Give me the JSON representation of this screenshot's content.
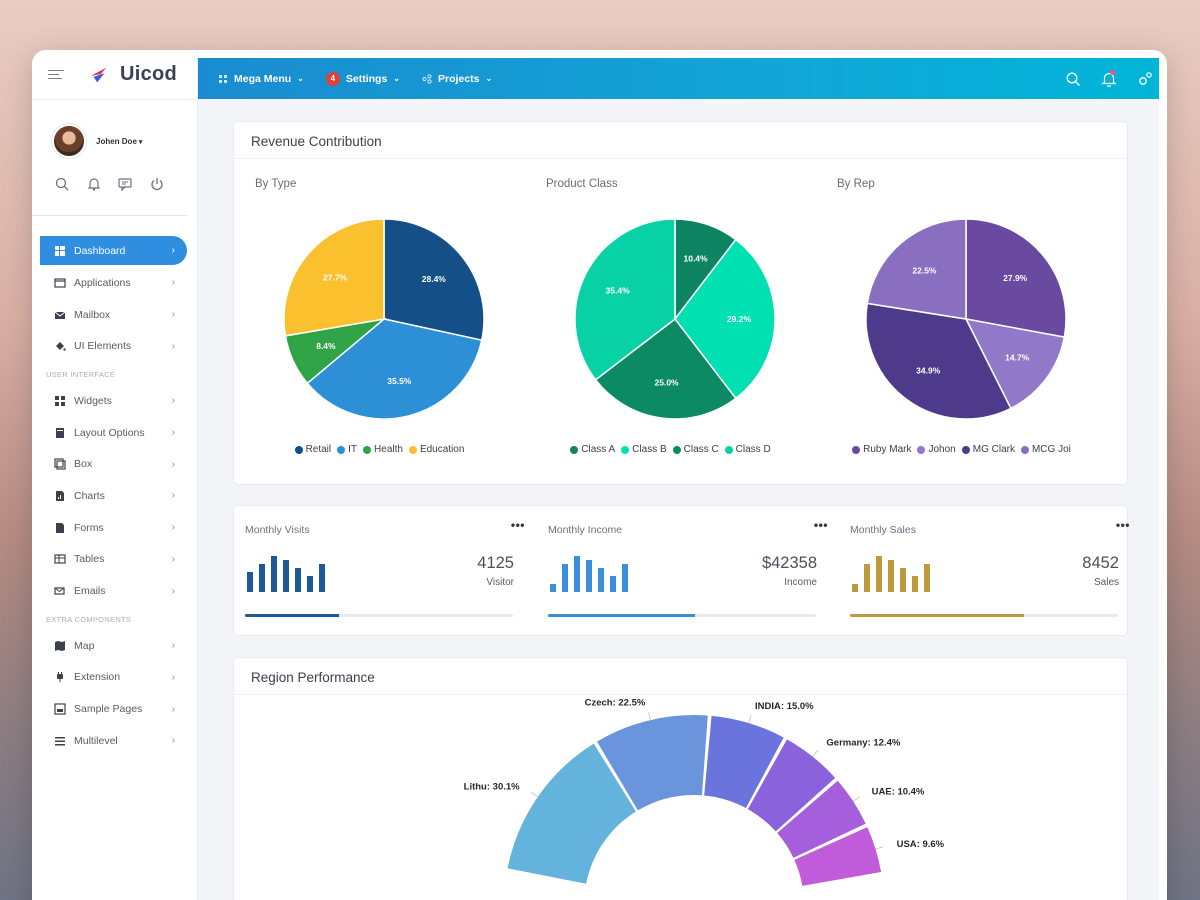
{
  "brand": {
    "name": "Uicod"
  },
  "profile": {
    "name": "Johen Doe"
  },
  "sidebar": {
    "items": [
      {
        "label": "Dashboard",
        "icon": "dashboard-icon"
      },
      {
        "label": "Applications",
        "icon": "window-icon"
      },
      {
        "label": "Mailbox",
        "icon": "mail-icon"
      },
      {
        "label": "UI Elements",
        "icon": "paint-bucket-icon"
      }
    ],
    "section_ui": "USER INTERFACE",
    "ui_items": [
      {
        "label": "Widgets",
        "icon": "widgets-icon"
      },
      {
        "label": "Layout Options",
        "icon": "layout-icon"
      },
      {
        "label": "Box",
        "icon": "box-icon"
      },
      {
        "label": "Charts",
        "icon": "file-chart-icon"
      },
      {
        "label": "Forms",
        "icon": "file-icon"
      },
      {
        "label": "Tables",
        "icon": "table-icon"
      },
      {
        "label": "Emails",
        "icon": "email-icon"
      }
    ],
    "section_extra": "EXTRA COMPONENTS",
    "extra_items": [
      {
        "label": "Map",
        "icon": "map-icon"
      },
      {
        "label": "Extension",
        "icon": "plug-icon"
      },
      {
        "label": "Sample Pages",
        "icon": "page-icon"
      },
      {
        "label": "Multilevel",
        "icon": "menu-lines-icon"
      }
    ]
  },
  "topbar": {
    "mega_menu": "Mega Menu",
    "settings": "Settings",
    "settings_badge": "4",
    "projects": "Projects"
  },
  "revenue": {
    "title": "Revenue Contribution"
  },
  "stats": [
    {
      "title": "Monthly Visits",
      "value": "4125",
      "unit": "Visitor",
      "progress": 0.35,
      "color": "#1e5a96",
      "bars": [
        5,
        7,
        9,
        8,
        6,
        4,
        7
      ]
    },
    {
      "title": "Monthly Income",
      "value": "$42358",
      "unit": "Income",
      "progress": 0.55,
      "color": "#3a8fd8",
      "bars": [
        2,
        7,
        9,
        8,
        6,
        4,
        7
      ]
    },
    {
      "title": "Monthly Sales",
      "value": "8452",
      "unit": "Sales",
      "progress": 0.65,
      "color": "#bd9a3e",
      "bars": [
        2,
        7,
        9,
        8,
        6,
        4,
        7
      ]
    }
  ],
  "region": {
    "title": "Region Performance"
  },
  "chart_data": [
    {
      "type": "pie",
      "title": "By Type",
      "categories": [
        "Retail",
        "IT",
        "Health",
        "Education"
      ],
      "values": [
        28.4,
        35.5,
        8.4,
        27.7
      ],
      "colors": [
        "#144f87",
        "#2d8fd6",
        "#30a346",
        "#fbc02d"
      ],
      "legend": "bottom"
    },
    {
      "type": "pie",
      "title": "Product Class",
      "categories": [
        "Class A",
        "Class B",
        "Class C",
        "Class D"
      ],
      "values": [
        10.4,
        29.2,
        25.0,
        35.4
      ],
      "colors": [
        "#0e8463",
        "#00e0b0",
        "#0b8a64",
        "#08d2a5"
      ],
      "legend": "bottom"
    },
    {
      "type": "pie",
      "title": "By Rep",
      "categories": [
        "Ruby Mark",
        "Johon",
        "MG Clark",
        "MCG Joi"
      ],
      "values": [
        27.9,
        14.7,
        34.9,
        22.5
      ],
      "colors": [
        "#6a4aa1",
        "#9178c8",
        "#4e3a8a",
        "#8a6fc1"
      ],
      "legend": "bottom"
    },
    {
      "type": "pie",
      "title": "Region Performance",
      "categories": [
        "Lithu",
        "Czech",
        "INDIA",
        "Germany",
        "UAE",
        "USA"
      ],
      "values": [
        30.1,
        22.5,
        15.0,
        12.4,
        10.4,
        9.6
      ],
      "labels": [
        "Lithu: 30.1%",
        "Czech: 22.5%",
        "INDIA: 15.0%",
        "Germany: 12.4%",
        "UAE: 10.4%",
        "USA: 9.6%"
      ],
      "colors": [
        "#63b3dc",
        "#6a95dc",
        "#6b73dd",
        "#8a63dc",
        "#a65fdc",
        "#c05bd9"
      ]
    }
  ]
}
